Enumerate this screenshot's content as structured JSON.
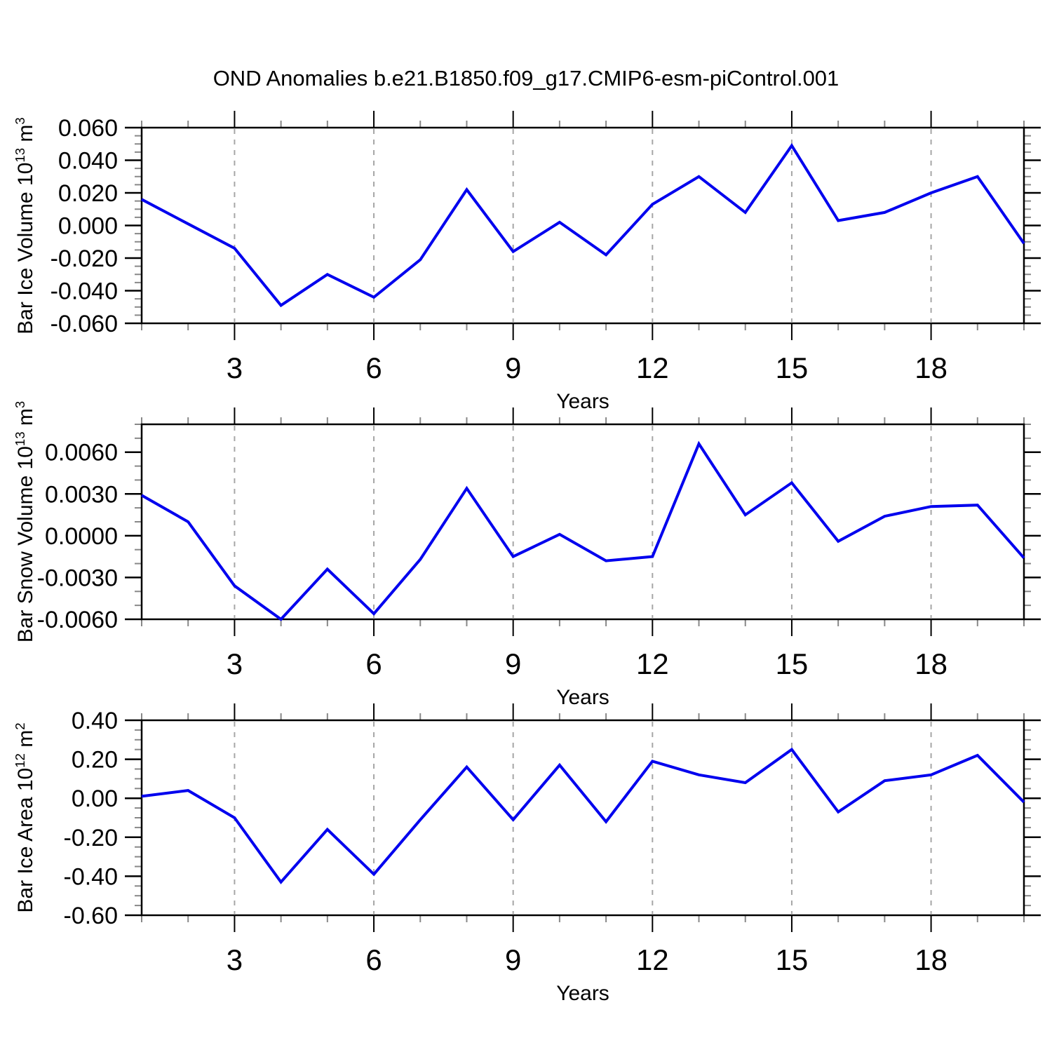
{
  "title": "OND Anomalies b.e21.B1850.f09_g17.CMIP6-esm-piControl.001",
  "colors": {
    "line": "#0000EE",
    "grid": "#A6A6A6",
    "axis": "#000000",
    "minor_tick": "#888888",
    "text": "#000000",
    "background": "#FFFFFF"
  },
  "x_axis": {
    "label": "Years",
    "major_ticks": [
      3,
      6,
      9,
      12,
      15,
      18
    ],
    "minor_tick_every": 1,
    "range": [
      1,
      20
    ]
  },
  "chart_data": [
    {
      "type": "line",
      "id": "ice-volume",
      "ylabel": {
        "base": "Bar Ice Volume 10",
        "exp": "13",
        "unit": " m",
        "unit_exp": "3"
      },
      "ymin": -0.06,
      "ymax": 0.06,
      "ytick_values": [
        0.06,
        0.04,
        0.02,
        0.0,
        -0.02,
        -0.04,
        -0.06
      ],
      "ytick_labels": [
        "0.060",
        "0.040",
        "0.020",
        "0.000",
        "-0.020",
        "-0.040",
        "-0.060"
      ],
      "minor_step": 0.005,
      "xlabel": "Years",
      "x": [
        1,
        2,
        3,
        4,
        5,
        6,
        7,
        8,
        9,
        10,
        11,
        12,
        13,
        14,
        15,
        16,
        17,
        18,
        19,
        20
      ],
      "values": [
        0.016,
        0.001,
        -0.014,
        -0.049,
        -0.03,
        -0.044,
        -0.021,
        0.022,
        -0.016,
        0.002,
        -0.018,
        0.013,
        0.03,
        0.008,
        0.049,
        0.003,
        0.008,
        0.02,
        0.03,
        -0.011
      ]
    },
    {
      "type": "line",
      "id": "snow-volume",
      "ylabel": {
        "base": "Bar Snow Volume 10",
        "exp": "13",
        "unit": " m",
        "unit_exp": "3"
      },
      "ymin": -0.006,
      "ymax": 0.008,
      "ytick_values": [
        0.006,
        0.003,
        0.0,
        -0.003,
        -0.006
      ],
      "ytick_labels": [
        "0.0060",
        "0.0030",
        "0.0000",
        "-0.0030",
        "-0.0060"
      ],
      "minor_step": 0.001,
      "xlabel": "Years",
      "x": [
        1,
        2,
        3,
        4,
        5,
        6,
        7,
        8,
        9,
        10,
        11,
        12,
        13,
        14,
        15,
        16,
        17,
        18,
        19,
        20
      ],
      "values": [
        0.0029,
        0.001,
        -0.0036,
        -0.006,
        -0.0024,
        -0.0056,
        -0.0017,
        0.0034,
        -0.0015,
        0.0001,
        -0.0018,
        -0.0015,
        0.0066,
        0.0015,
        0.0038,
        -0.0004,
        0.0014,
        0.0021,
        0.0022,
        -0.0016
      ]
    },
    {
      "type": "line",
      "id": "ice-area",
      "ylabel": {
        "base": "Bar Ice Area 10",
        "exp": "12",
        "unit": " m",
        "unit_exp": "2"
      },
      "ymin": -0.6,
      "ymax": 0.4,
      "ytick_values": [
        0.4,
        0.2,
        0.0,
        -0.2,
        -0.4,
        -0.6
      ],
      "ytick_labels": [
        "0.40",
        "0.20",
        "0.00",
        "-0.20",
        "-0.40",
        "-0.60"
      ],
      "minor_step": 0.05,
      "xlabel": "Years",
      "x": [
        1,
        2,
        3,
        4,
        5,
        6,
        7,
        8,
        9,
        10,
        11,
        12,
        13,
        14,
        15,
        16,
        17,
        18,
        19,
        20
      ],
      "values": [
        0.01,
        0.04,
        -0.1,
        -0.43,
        -0.16,
        -0.39,
        -0.11,
        0.16,
        -0.11,
        0.17,
        -0.12,
        0.19,
        0.12,
        0.08,
        0.25,
        -0.07,
        0.09,
        0.12,
        0.22,
        -0.02
      ]
    }
  ]
}
